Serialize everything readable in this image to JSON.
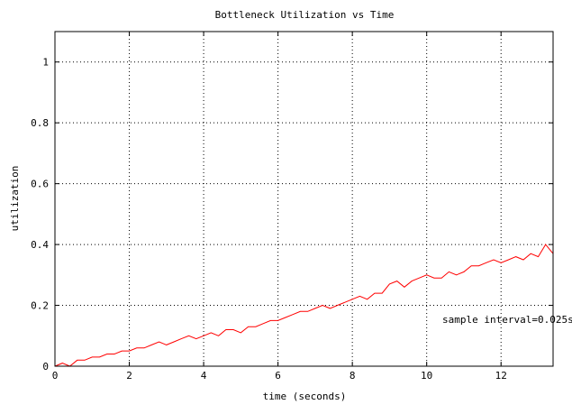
{
  "chart_data": {
    "type": "line",
    "title": "Bottleneck Utilization vs Time",
    "xlabel": "time (seconds)",
    "ylabel": "utilization",
    "xlim": [
      0,
      13.4
    ],
    "ylim": [
      0,
      1.1
    ],
    "x_ticks": [
      0,
      2,
      4,
      6,
      8,
      10,
      12
    ],
    "x_tick_labels": [
      "0",
      "2",
      "4",
      "6",
      "8",
      "10",
      "12"
    ],
    "y_ticks": [
      0,
      0.2,
      0.4,
      0.6,
      0.8,
      1
    ],
    "y_tick_labels": [
      "0",
      "0.2",
      "0.4",
      "0.6",
      "0.8",
      "1"
    ],
    "grid": true,
    "annotation": "sample interval=0.025s",
    "series_color": "#ff0000",
    "series": [
      {
        "x": [
          0.0,
          0.2,
          0.4,
          0.6,
          0.8,
          1.0,
          1.2,
          1.4,
          1.6,
          1.8,
          2.0,
          2.2,
          2.4,
          2.6,
          2.8,
          3.0,
          3.2,
          3.4,
          3.6,
          3.8,
          4.0,
          4.2,
          4.4,
          4.6,
          4.8,
          5.0,
          5.2,
          5.4,
          5.6,
          5.8,
          6.0,
          6.2,
          6.4,
          6.6,
          6.8,
          7.0,
          7.2,
          7.4,
          7.6,
          7.8,
          8.0,
          8.2,
          8.4,
          8.6,
          8.8,
          9.0,
          9.2,
          9.4,
          9.6,
          9.8,
          10.0,
          10.2,
          10.4,
          10.6,
          10.8,
          11.0,
          11.2,
          11.4,
          11.6,
          11.8,
          12.0,
          12.2,
          12.4,
          12.6,
          12.8,
          13.0,
          13.2,
          13.4
        ],
        "y": [
          0.0,
          0.01,
          0.0,
          0.02,
          0.02,
          0.03,
          0.03,
          0.04,
          0.04,
          0.05,
          0.05,
          0.06,
          0.06,
          0.07,
          0.08,
          0.07,
          0.08,
          0.09,
          0.1,
          0.09,
          0.1,
          0.11,
          0.1,
          0.12,
          0.12,
          0.11,
          0.13,
          0.13,
          0.14,
          0.15,
          0.15,
          0.16,
          0.17,
          0.18,
          0.18,
          0.19,
          0.2,
          0.19,
          0.2,
          0.21,
          0.22,
          0.23,
          0.22,
          0.24,
          0.24,
          0.27,
          0.28,
          0.26,
          0.28,
          0.29,
          0.3,
          0.29,
          0.29,
          0.31,
          0.3,
          0.31,
          0.33,
          0.33,
          0.34,
          0.35,
          0.34,
          0.35,
          0.36,
          0.35,
          0.37,
          0.36,
          0.4,
          0.37
        ]
      }
    ]
  }
}
